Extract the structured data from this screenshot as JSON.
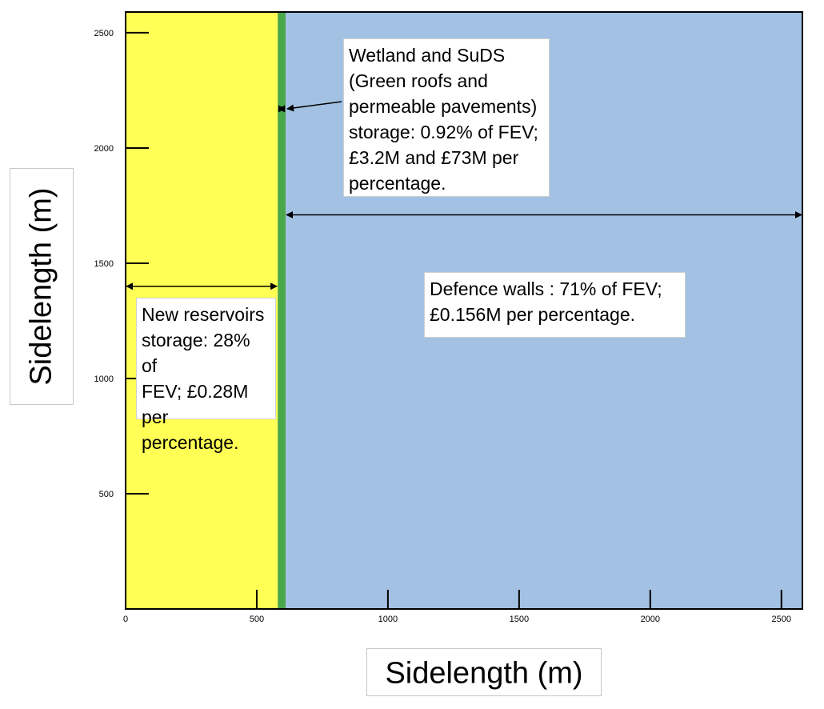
{
  "chart_data": {
    "type": "area",
    "title": "",
    "xlabel": "Sidelength (m)",
    "ylabel": "Sidelength (m)",
    "xlim": [
      0,
      2580
    ],
    "ylim": [
      0,
      2590
    ],
    "x_ticks": [
      0,
      500,
      1000,
      1500,
      2000,
      2500
    ],
    "y_ticks": [
      500,
      1000,
      1500,
      2000,
      2500
    ],
    "grid": false,
    "series": [
      {
        "x_range": [
          0,
          580
        ],
        "color": "#ffff55"
      },
      {
        "x_range": [
          580,
          610
        ],
        "color": "#4aa84a"
      },
      {
        "x_range": [
          610,
          2580
        ],
        "color": "#a3c2e3"
      }
    ],
    "annotations": [
      {
        "id": "reservoirs",
        "text": "New reservoirs storage: 28% of FEV; £0.28M per percentage.",
        "lines": [
          "New reservoirs",
          "storage: 28% of",
          "FEV; £0.28M",
          "per percentage."
        ],
        "arrow_x": [
          0,
          580
        ],
        "arrow_y": 1400
      },
      {
        "id": "wetland",
        "text": "Wetland and SuDS (Green roofs and permeable pavements) storage: 0.92% of FEV; £3.2M and £73M per percentage.",
        "lines": [
          "Wetland and SuDS",
          "(Green roofs and",
          "permeable pavements)",
          "storage: 0.92% of FEV;",
          "£3.2M and £73M per",
          "percentage."
        ],
        "arrow_x": [
          580,
          610
        ],
        "arrow_y": 2170
      },
      {
        "id": "defence",
        "text": "Defence walls : 71% of FEV; £0.156M per percentage.",
        "lines": [
          "Defence walls : 71% of FEV;",
          "£0.156M per percentage."
        ],
        "arrow_x": [
          610,
          2580
        ],
        "arrow_y": 1710
      }
    ]
  }
}
